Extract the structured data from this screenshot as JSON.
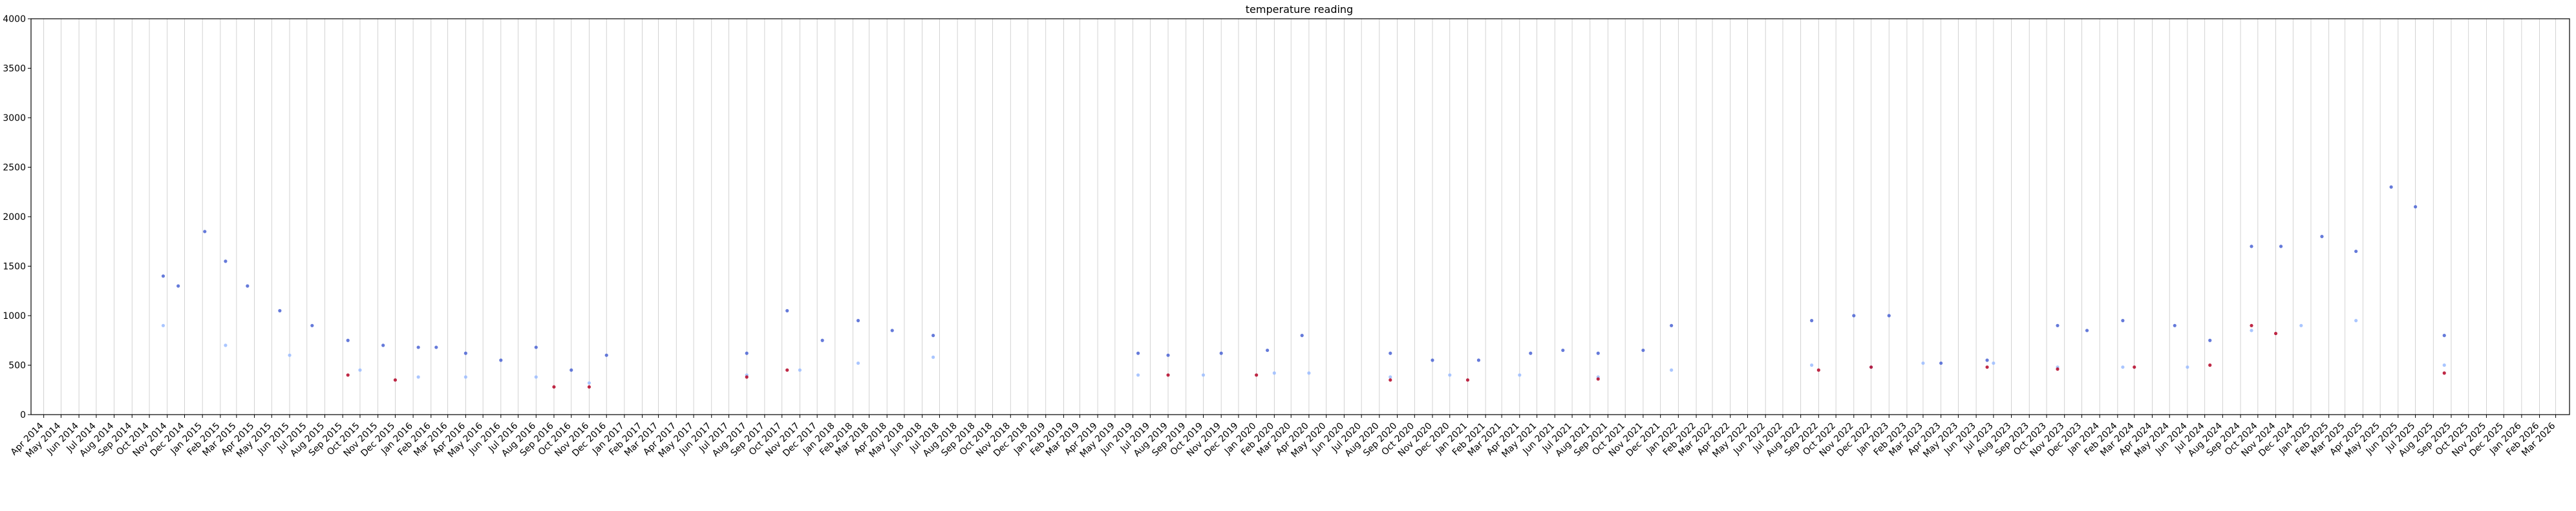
{
  "chart_data": {
    "type": "scatter",
    "title": "temperature reading",
    "xlabel": "",
    "ylabel": "",
    "ylim": [
      0,
      4000
    ],
    "xlim": [
      "2014-03-10",
      "2026-03-25"
    ],
    "grid": "vertical",
    "yticks": [
      0,
      500,
      1000,
      1500,
      2000,
      2500,
      3000,
      3500,
      4000
    ],
    "xtick_labels": [
      "Apr 2014",
      "May 2014",
      "Jun 2014",
      "Jul 2014",
      "Aug 2014",
      "Sep 2014",
      "Oct 2014",
      "Nov 2014",
      "Dec 2014",
      "Jan 2015",
      "Feb 2015",
      "Mar 2015",
      "Apr 2015",
      "May 2015",
      "Jun 2015",
      "Jul 2015",
      "Aug 2015",
      "Sep 2015",
      "Oct 2015",
      "Nov 2015",
      "Dec 2015",
      "Jan 2016",
      "Feb 2016",
      "Mar 2016",
      "Apr 2016",
      "May 2016",
      "Jun 2016",
      "Jul 2016",
      "Aug 2016",
      "Sep 2016",
      "Oct 2016",
      "Nov 2016",
      "Dec 2016",
      "Jan 2017",
      "Feb 2017",
      "Mar 2017",
      "Apr 2017",
      "May 2017",
      "Jun 2017",
      "Jul 2017",
      "Aug 2017",
      "Sep 2017",
      "Oct 2017",
      "Nov 2017",
      "Dec 2017",
      "Jan 2018",
      "Feb 2018",
      "Mar 2018",
      "Apr 2018",
      "May 2018",
      "Jun 2018",
      "Jul 2018",
      "Aug 2018",
      "Sep 2018",
      "Oct 2018",
      "Nov 2018",
      "Dec 2018",
      "Jan 2019",
      "Feb 2019",
      "Mar 2019",
      "Apr 2019",
      "May 2019",
      "Jun 2019",
      "Jul 2019",
      "Aug 2019",
      "Sep 2019",
      "Oct 2019",
      "Nov 2019",
      "Dec 2019",
      "Jan 2020",
      "Feb 2020",
      "Mar 2020",
      "Apr 2020",
      "May 2020",
      "Jun 2020",
      "Jul 2020",
      "Aug 2020",
      "Sep 2020",
      "Oct 2020",
      "Nov 2020",
      "Dec 2020",
      "Jan 2021",
      "Feb 2021",
      "Mar 2021",
      "Apr 2021",
      "May 2021",
      "Jun 2021",
      "Jul 2021",
      "Aug 2021",
      "Sep 2021",
      "Oct 2021",
      "Nov 2021",
      "Dec 2021",
      "Jan 2022",
      "Feb 2022",
      "Mar 2022",
      "Apr 2022",
      "May 2022",
      "Jun 2022",
      "Jul 2022",
      "Aug 2022",
      "Sep 2022",
      "Oct 2022",
      "Nov 2022",
      "Dec 2022",
      "Jan 2023",
      "Feb 2023",
      "Mar 2023",
      "Apr 2023",
      "May 2023",
      "Jun 2023",
      "Jul 2023",
      "Aug 2023",
      "Sep 2023",
      "Oct 2023",
      "Nov 2023",
      "Dec 2023",
      "Jan 2024",
      "Feb 2024",
      "Mar 2024",
      "Apr 2024",
      "May 2024",
      "Jun 2024",
      "Jul 2024",
      "Aug 2024",
      "Sep 2024",
      "Oct 2024",
      "Nov 2024",
      "Dec 2024",
      "Jan 2025",
      "Feb 2025",
      "Mar 2025",
      "Apr 2025",
      "May 2025",
      "Jun 2025",
      "Jul 2025",
      "Aug 2025",
      "Sep 2025",
      "Oct 2025",
      "Nov 2025",
      "Dec 2025",
      "Jan 2026",
      "Feb 2026",
      "Mar 2026"
    ],
    "colormap": "coolwarm",
    "colors": {
      "cool": "#3b4cc0",
      "light": "#9bbcff",
      "warm": "#f4a582",
      "hot": "#b40426"
    },
    "series": [
      {
        "band": "upper",
        "color": "#4a63d3",
        "x": [
          "2014-10-25",
          "2014-11-20",
          "2015-01-05",
          "2015-02-10",
          "2015-03-20",
          "2015-05-15",
          "2015-07-10",
          "2015-09-10",
          "2015-11-10",
          "2016-01-10",
          "2016-02-10",
          "2016-04-01",
          "2016-06-01",
          "2016-08-01",
          "2016-10-01",
          "2016-12-01",
          "2017-08-01",
          "2017-10-10",
          "2017-12-10",
          "2018-02-10",
          "2018-04-10",
          "2018-06-20",
          "2019-06-10",
          "2019-08-01",
          "2019-11-01",
          "2020-01-20",
          "2020-03-20",
          "2020-08-20",
          "2020-11-01",
          "2021-01-20",
          "2021-04-20",
          "2021-06-15",
          "2021-08-15",
          "2021-11-01",
          "2021-12-20",
          "2022-08-20",
          "2022-11-01",
          "2023-01-01",
          "2023-04-01",
          "2023-06-20",
          "2023-10-20",
          "2023-12-10",
          "2024-02-10",
          "2024-05-10",
          "2024-07-10",
          "2024-09-20",
          "2024-11-10",
          "2025-01-20",
          "2025-03-20",
          "2025-05-20",
          "2025-07-01",
          "2025-08-20"
        ],
        "y": [
          1400,
          1300,
          1850,
          1550,
          1300,
          1050,
          900,
          750,
          700,
          680,
          680,
          620,
          550,
          680,
          450,
          600,
          620,
          1050,
          750,
          950,
          850,
          800,
          620,
          600,
          620,
          650,
          800,
          620,
          550,
          550,
          620,
          650,
          620,
          650,
          900,
          950,
          1000,
          1000,
          520,
          550,
          900,
          850,
          950,
          900,
          750,
          1700,
          1700,
          1800,
          1650,
          2300,
          2100,
          800
        ]
      },
      {
        "band": "lower",
        "color": "#9bbcff",
        "x": [
          "2014-10-25",
          "2015-02-10",
          "2015-06-01",
          "2015-10-01",
          "2016-01-10",
          "2016-04-01",
          "2016-08-01",
          "2016-11-01",
          "2017-08-01",
          "2017-11-01",
          "2018-02-10",
          "2018-06-20",
          "2019-06-10",
          "2019-10-01",
          "2020-02-01",
          "2020-04-01",
          "2020-08-20",
          "2020-12-01",
          "2021-04-01",
          "2021-08-15",
          "2021-12-20",
          "2022-08-20",
          "2022-12-01",
          "2023-03-01",
          "2023-07-01",
          "2023-10-20",
          "2024-02-10",
          "2024-06-01",
          "2024-09-20",
          "2024-12-15",
          "2025-03-20",
          "2025-08-20"
        ],
        "y": [
          900,
          700,
          600,
          450,
          380,
          380,
          380,
          320,
          400,
          450,
          520,
          580,
          400,
          400,
          420,
          420,
          380,
          400,
          400,
          380,
          450,
          500,
          480,
          520,
          520,
          480,
          480,
          480,
          850,
          900,
          950,
          500
        ]
      },
      {
        "band": "warm",
        "color": "#b40426",
        "x": [
          "2015-09-10",
          "2015-12-01",
          "2016-09-01",
          "2016-11-01",
          "2017-08-01",
          "2017-10-10",
          "2019-08-01",
          "2020-01-01",
          "2020-08-20",
          "2021-01-01",
          "2021-08-15",
          "2022-09-01",
          "2022-12-01",
          "2023-06-20",
          "2023-10-20",
          "2024-03-01",
          "2024-07-10",
          "2024-09-20",
          "2024-11-01",
          "2025-08-20"
        ],
        "y": [
          400,
          350,
          280,
          280,
          380,
          450,
          400,
          400,
          350,
          350,
          360,
          450,
          480,
          480,
          460,
          480,
          500,
          900,
          820,
          420
        ]
      }
    ]
  }
}
